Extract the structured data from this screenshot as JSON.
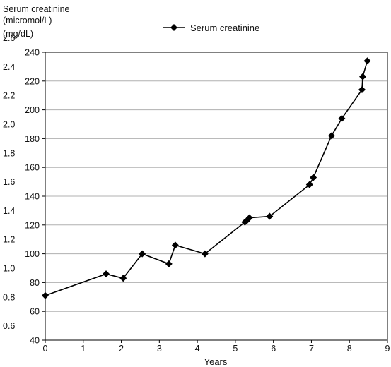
{
  "chart_data": {
    "type": "line",
    "title": "",
    "xlabel": "Years",
    "ylabel_primary": "Serum creatinine (micromol/L)",
    "ylabel_primary_lines": [
      "Serum creatinine",
      "(micromol/L)"
    ],
    "ylabel_secondary": "(mg/dL)",
    "xlim": [
      0,
      9
    ],
    "ylim": [
      40,
      240
    ],
    "x_ticks": [
      "0",
      "1",
      "2",
      "3",
      "4",
      "5",
      "6",
      "7",
      "8",
      "9"
    ],
    "y_ticks": [
      "40",
      "60",
      "80",
      "100",
      "120",
      "140",
      "160",
      "180",
      "200",
      "220",
      "240"
    ],
    "y2_ticks": [
      "0.6",
      "0.8",
      "1.0",
      "1.2",
      "1.4",
      "1.6",
      "1.8",
      "2.0",
      "2.2",
      "2.4",
      "2.6"
    ],
    "grid": true,
    "legend_position": "top-center",
    "marker": "diamond",
    "series": [
      {
        "name": "Serum creatinine",
        "color": "#000000",
        "x": [
          0.0,
          1.6,
          2.05,
          2.55,
          3.25,
          3.42,
          4.2,
          5.25,
          5.3,
          5.37,
          5.9,
          6.95,
          7.05,
          7.53,
          7.8,
          8.33,
          8.35,
          8.47
        ],
        "y": [
          71,
          86,
          83,
          100,
          93,
          106,
          100,
          122,
          123,
          125,
          126,
          148,
          153,
          182,
          194,
          214,
          223,
          234
        ]
      }
    ]
  }
}
